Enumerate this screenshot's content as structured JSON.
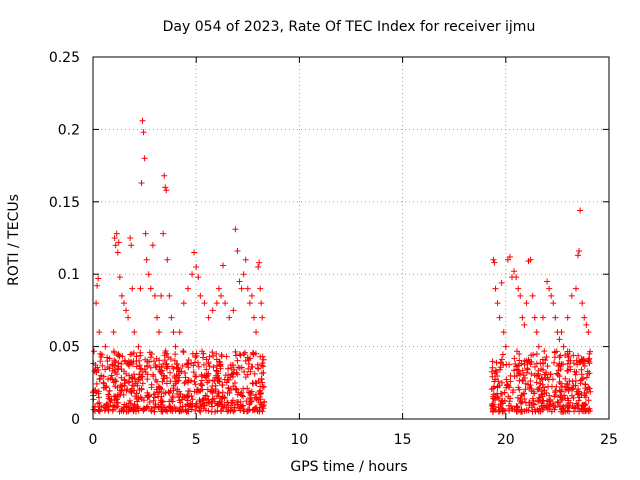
{
  "chart_data": {
    "type": "scatter",
    "title": "Day 054 of 2023, Rate Of TEC Index for receiver ijmu",
    "xlabel": "GPS time / hours",
    "ylabel": "ROTI / TECUs",
    "xlim": [
      0,
      25
    ],
    "ylim": [
      0,
      0.25
    ],
    "xticks": [
      0,
      5,
      10,
      15,
      20,
      25
    ],
    "xtick_labels": [
      "0",
      "5",
      "10",
      "15",
      "20",
      "25"
    ],
    "yticks": [
      0,
      0.05,
      0.1,
      0.15,
      0.2,
      0.25
    ],
    "ytick_labels": [
      "0",
      "0.05",
      "0.1",
      "0.15",
      "0.2",
      "0.25"
    ],
    "grid": true,
    "marker": "+",
    "color": "#ff0000",
    "series": [
      {
        "name": "ROTI",
        "points": [
          [
            0.1,
            0.02
          ],
          [
            0.15,
            0.08
          ],
          [
            0.2,
            0.092
          ],
          [
            0.25,
            0.097
          ],
          [
            0.3,
            0.06
          ],
          [
            0.35,
            0.045
          ],
          [
            0.4,
            0.03
          ],
          [
            0.5,
            0.025
          ],
          [
            0.6,
            0.05
          ],
          [
            0.7,
            0.04
          ],
          [
            0.8,
            0.035
          ],
          [
            0.9,
            0.03
          ],
          [
            1.0,
            0.06
          ],
          [
            1.05,
            0.125
          ],
          [
            1.1,
            0.12
          ],
          [
            1.15,
            0.128
          ],
          [
            1.2,
            0.115
          ],
          [
            1.25,
            0.122
          ],
          [
            1.3,
            0.098
          ],
          [
            1.4,
            0.085
          ],
          [
            1.5,
            0.08
          ],
          [
            1.6,
            0.075
          ],
          [
            1.7,
            0.07
          ],
          [
            1.8,
            0.125
          ],
          [
            1.85,
            0.12
          ],
          [
            1.9,
            0.09
          ],
          [
            2.0,
            0.06
          ],
          [
            2.1,
            0.04
          ],
          [
            2.2,
            0.05
          ],
          [
            2.3,
            0.09
          ],
          [
            2.35,
            0.163
          ],
          [
            2.4,
            0.206
          ],
          [
            2.45,
            0.198
          ],
          [
            2.5,
            0.18
          ],
          [
            2.55,
            0.128
          ],
          [
            2.6,
            0.11
          ],
          [
            2.7,
            0.1
          ],
          [
            2.8,
            0.09
          ],
          [
            2.9,
            0.12
          ],
          [
            3.0,
            0.085
          ],
          [
            3.1,
            0.07
          ],
          [
            3.2,
            0.06
          ],
          [
            3.3,
            0.085
          ],
          [
            3.4,
            0.128
          ],
          [
            3.45,
            0.168
          ],
          [
            3.5,
            0.16
          ],
          [
            3.55,
            0.158
          ],
          [
            3.6,
            0.11
          ],
          [
            3.7,
            0.085
          ],
          [
            3.8,
            0.07
          ],
          [
            3.9,
            0.06
          ],
          [
            4.0,
            0.05
          ],
          [
            4.2,
            0.06
          ],
          [
            4.4,
            0.08
          ],
          [
            4.6,
            0.09
          ],
          [
            4.8,
            0.1
          ],
          [
            4.9,
            0.115
          ],
          [
            5.0,
            0.105
          ],
          [
            5.1,
            0.098
          ],
          [
            5.2,
            0.085
          ],
          [
            5.4,
            0.08
          ],
          [
            5.6,
            0.07
          ],
          [
            5.8,
            0.075
          ],
          [
            6.0,
            0.08
          ],
          [
            6.1,
            0.09
          ],
          [
            6.2,
            0.085
          ],
          [
            6.3,
            0.106
          ],
          [
            6.4,
            0.08
          ],
          [
            6.6,
            0.07
          ],
          [
            6.8,
            0.075
          ],
          [
            6.9,
            0.131
          ],
          [
            7.0,
            0.116
          ],
          [
            7.1,
            0.095
          ],
          [
            7.2,
            0.09
          ],
          [
            7.3,
            0.1
          ],
          [
            7.4,
            0.11
          ],
          [
            7.5,
            0.09
          ],
          [
            7.6,
            0.08
          ],
          [
            7.7,
            0.085
          ],
          [
            7.8,
            0.07
          ],
          [
            7.9,
            0.06
          ],
          [
            8.0,
            0.105
          ],
          [
            8.05,
            0.108
          ],
          [
            8.1,
            0.09
          ],
          [
            8.15,
            0.08
          ],
          [
            8.2,
            0.07
          ],
          [
            19.4,
            0.11
          ],
          [
            19.45,
            0.108
          ],
          [
            19.5,
            0.09
          ],
          [
            19.6,
            0.08
          ],
          [
            19.7,
            0.07
          ],
          [
            19.8,
            0.094
          ],
          [
            19.9,
            0.06
          ],
          [
            20.0,
            0.05
          ],
          [
            20.1,
            0.11
          ],
          [
            20.2,
            0.112
          ],
          [
            20.3,
            0.098
          ],
          [
            20.4,
            0.102
          ],
          [
            20.5,
            0.098
          ],
          [
            20.6,
            0.09
          ],
          [
            20.7,
            0.085
          ],
          [
            20.8,
            0.07
          ],
          [
            20.9,
            0.065
          ],
          [
            21.0,
            0.08
          ],
          [
            21.1,
            0.109
          ],
          [
            21.2,
            0.11
          ],
          [
            21.3,
            0.085
          ],
          [
            21.4,
            0.07
          ],
          [
            21.5,
            0.06
          ],
          [
            21.6,
            0.05
          ],
          [
            21.8,
            0.07
          ],
          [
            22.0,
            0.095
          ],
          [
            22.1,
            0.09
          ],
          [
            22.2,
            0.085
          ],
          [
            22.3,
            0.08
          ],
          [
            22.4,
            0.07
          ],
          [
            22.5,
            0.06
          ],
          [
            22.6,
            0.055
          ],
          [
            22.7,
            0.06
          ],
          [
            22.8,
            0.05
          ],
          [
            23.0,
            0.07
          ],
          [
            23.2,
            0.085
          ],
          [
            23.4,
            0.09
          ],
          [
            23.5,
            0.113
          ],
          [
            23.55,
            0.116
          ],
          [
            23.6,
            0.144
          ],
          [
            23.7,
            0.08
          ],
          [
            23.8,
            0.07
          ],
          [
            23.9,
            0.065
          ],
          [
            24.0,
            0.06
          ],
          [
            24.05,
            0.045
          ]
        ]
      }
    ],
    "data_ranges_hours": [
      [
        0.0,
        8.3
      ],
      [
        19.3,
        24.1
      ]
    ],
    "baseline_band_tecus": [
      0.005,
      0.035
    ]
  }
}
